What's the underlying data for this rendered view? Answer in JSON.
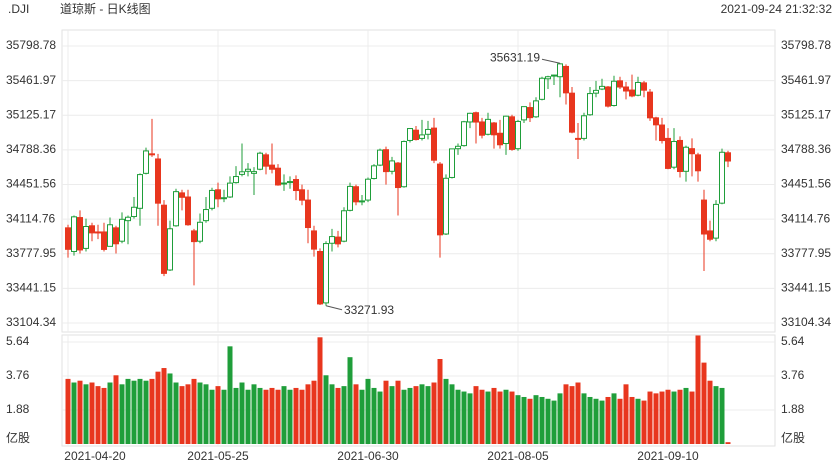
{
  "chart_data": {
    "type": "candlestick",
    "symbol": ".DJI",
    "title": "道琼斯 - 日K线图",
    "timestamp": "2021-09-24 21:32:32",
    "categories": [
      "2021-04-20",
      null,
      null,
      null,
      null,
      null,
      null,
      null,
      null,
      null,
      null,
      null,
      null,
      null,
      null,
      null,
      null,
      null,
      null,
      null,
      null,
      null,
      null,
      null,
      null,
      "2021-05-25",
      null,
      null,
      null,
      null,
      null,
      null,
      null,
      null,
      null,
      null,
      null,
      null,
      null,
      null,
      null,
      null,
      null,
      null,
      null,
      null,
      null,
      null,
      null,
      null,
      "2021-06-30",
      null,
      null,
      null,
      null,
      null,
      null,
      null,
      null,
      null,
      null,
      null,
      null,
      null,
      null,
      null,
      null,
      null,
      null,
      null,
      null,
      null,
      null,
      null,
      null,
      "2021-08-05",
      null,
      null,
      null,
      null,
      null,
      null,
      null,
      null,
      null,
      null,
      null,
      null,
      null,
      null,
      null,
      null,
      null,
      null,
      null,
      null,
      null,
      null,
      null,
      null,
      "2021-09-10",
      null,
      null,
      null,
      null,
      null,
      null,
      null,
      null,
      null,
      null
    ],
    "open": [
      34030,
      33800,
      34130,
      33830,
      34050,
      33990,
      33990,
      33850,
      34030,
      33900,
      34100,
      34140,
      34220,
      34560,
      34750,
      34700,
      34250,
      33620,
      34050,
      34370,
      34330,
      34000,
      33900,
      34100,
      34220,
      34400,
      34320,
      34330,
      34470,
      34550,
      34580,
      34560,
      34600,
      34740,
      34640,
      34610,
      34460,
      34470,
      34500,
      34400,
      34300,
      34000,
      33800,
      33300,
      33880,
      33940,
      33900,
      34200,
      34430,
      34290,
      34300,
      34510,
      34640,
      34790,
      34580,
      34660,
      34430,
      34880,
      34980,
      34900,
      34940,
      35000,
      34650,
      33970,
      34520,
      34800,
      34830,
      35060,
      35150,
      35060,
      34940,
      35050,
      34950,
      34850,
      35110,
      34800,
      35080,
      35200,
      35110,
      35280,
      35480,
      35510,
      35500,
      35600,
      35340,
      34900,
      34900,
      35130,
      35340,
      35380,
      35400,
      35220,
      35460,
      35400,
      35370,
      35320,
      35440,
      35350,
      35100,
      35030,
      34900,
      34620,
      34880,
      34580,
      34800,
      34740,
      34300,
      34000,
      33930,
      34270,
      34760
    ],
    "high": [
      34060,
      34150,
      34200,
      34120,
      34080,
      34060,
      34080,
      34130,
      34050,
      34180,
      34150,
      34330,
      34560,
      34810,
      35090,
      34750,
      34300,
      34100,
      34410,
      34400,
      34400,
      34020,
      34170,
      34330,
      34420,
      34470,
      34400,
      34530,
      34630,
      34850,
      34660,
      34620,
      34770,
      34760,
      34850,
      34650,
      34550,
      34530,
      34540,
      34450,
      34400,
      34050,
      33830,
      33900,
      34020,
      34000,
      34230,
      34470,
      34450,
      34350,
      34520,
      34650,
      34800,
      34820,
      34720,
      34670,
      34880,
      35000,
      35020,
      35080,
      35070,
      35100,
      34670,
      34550,
      34800,
      34850,
      35070,
      35150,
      35160,
      35100,
      35150,
      35060,
      35080,
      35120,
      35130,
      35080,
      35210,
      35250,
      35300,
      35500,
      35510,
      35520,
      35631.19,
      35620,
      35400,
      35050,
      35150,
      35400,
      35460,
      35480,
      35410,
      35510,
      35500,
      35450,
      35520,
      35500,
      35460,
      35380,
      35110,
      35100,
      35000,
      35000,
      34920,
      34830,
      34900,
      34760,
      34400,
      34100,
      34300,
      34800,
      34780
    ],
    "low": [
      33740,
      33760,
      33780,
      33800,
      33900,
      33920,
      33800,
      33850,
      33780,
      33880,
      33870,
      34120,
      34050,
      34550,
      34720,
      34050,
      33560,
      33610,
      34040,
      34200,
      34050,
      33470,
      33880,
      34080,
      34200,
      34230,
      34280,
      34320,
      34460,
      34530,
      34530,
      34350,
      34590,
      34550,
      34560,
      34440,
      34390,
      34410,
      34300,
      34250,
      33880,
      33750,
      33280,
      33271.93,
      33800,
      33840,
      33890,
      34190,
      34250,
      34250,
      34280,
      34500,
      34630,
      34450,
      34550,
      34150,
      34420,
      34860,
      34880,
      34880,
      34890,
      34660,
      33740,
      33960,
      34510,
      34740,
      34820,
      35000,
      34850,
      34900,
      34930,
      34800,
      34800,
      34740,
      34780,
      34780,
      35050,
      35060,
      35100,
      35270,
      35380,
      35420,
      35300,
      35230,
      34950,
      34700,
      34880,
      35120,
      35300,
      35370,
      35200,
      35210,
      35380,
      35280,
      35300,
      35310,
      35300,
      35070,
      34880,
      34850,
      34600,
      34600,
      34520,
      34480,
      34530,
      34480,
      33610,
      33900,
      33900,
      34260,
      34620
    ],
    "close": [
      33821,
      34137,
      33815,
      34043,
      33981,
      33984,
      33820,
      34060,
      33875,
      34113,
      34133,
      34230,
      34548,
      34778,
      34743,
      34270,
      33587,
      34021,
      34382,
      34327,
      34060,
      33896,
      34084,
      34208,
      34394,
      34312,
      34323,
      34465,
      34529,
      34575,
      34600,
      34577,
      34756,
      34630,
      34600,
      34447,
      34466,
      34480,
      34393,
      34299,
      34033,
      33823,
      33290,
      33877,
      33945,
      33874,
      34196,
      34433,
      34283,
      34292,
      34503,
      34633,
      34786,
      34577,
      34681,
      34422,
      34870,
      34996,
      34889,
      34934,
      34987,
      34688,
      33962,
      34512,
      34798,
      34823,
      35062,
      35144,
      35059,
      34931,
      35085,
      34935,
      34838,
      35116,
      34793,
      35065,
      35209,
      35102,
      35265,
      35485,
      35500,
      35516,
      35625,
      35343,
      34961,
      34894,
      35120,
      35336,
      35367,
      35406,
      35214,
      35456,
      35400,
      35361,
      35313,
      35444,
      35369,
      35100,
      35032,
      34879,
      34608,
      34870,
      34578,
      34814,
      34751,
      34585,
      33970,
      33919,
      34258,
      34765,
      34680
    ],
    "volume": [
      3.6,
      3.4,
      3.5,
      3.3,
      3.4,
      3.2,
      3.1,
      3.4,
      3.8,
      3.3,
      3.6,
      3.5,
      3.6,
      3.5,
      3.6,
      4.0,
      4.2,
      3.9,
      3.4,
      3.2,
      3.3,
      3.6,
      3.4,
      3.3,
      3.0,
      3.2,
      3.0,
      5.4,
      3.1,
      3.4,
      3.0,
      3.3,
      3.1,
      3.0,
      3.1,
      3.0,
      3.2,
      3.0,
      3.1,
      3.0,
      3.3,
      3.5,
      5.9,
      3.8,
      3.3,
      3.1,
      3.2,
      4.8,
      3.3,
      3.0,
      3.6,
      3.1,
      2.9,
      3.5,
      3.2,
      3.5,
      3.0,
      3.1,
      3.2,
      3.3,
      3.2,
      3.4,
      4.7,
      3.6,
      3.3,
      3.0,
      2.9,
      2.8,
      3.2,
      3.0,
      2.9,
      3.1,
      2.9,
      3.0,
      2.9,
      2.7,
      2.6,
      2.5,
      2.7,
      2.6,
      2.5,
      2.4,
      2.8,
      3.3,
      3.2,
      3.4,
      2.8,
      2.6,
      2.5,
      2.4,
      2.6,
      2.8,
      2.5,
      3.3,
      2.6,
      2.5,
      2.4,
      2.9,
      2.8,
      2.9,
      3.0,
      2.9,
      3.0,
      3.1,
      2.9,
      6.0,
      4.5,
      3.5,
      3.2,
      3.1,
      0.1
    ],
    "ylim": [
      33104.34,
      35798.78
    ],
    "yticks": [
      35798.78,
      35461.97,
      35125.17,
      34788.36,
      34451.56,
      34114.76,
      33777.95,
      33441.15,
      33104.34
    ],
    "volume_ylim": [
      0,
      5.64
    ],
    "volume_ticks": [
      5.64,
      3.76,
      1.88
    ],
    "volume_unit": "亿股",
    "up_color": "#1f9e3a",
    "down_color": "#e8361e",
    "grid": true
  }
}
